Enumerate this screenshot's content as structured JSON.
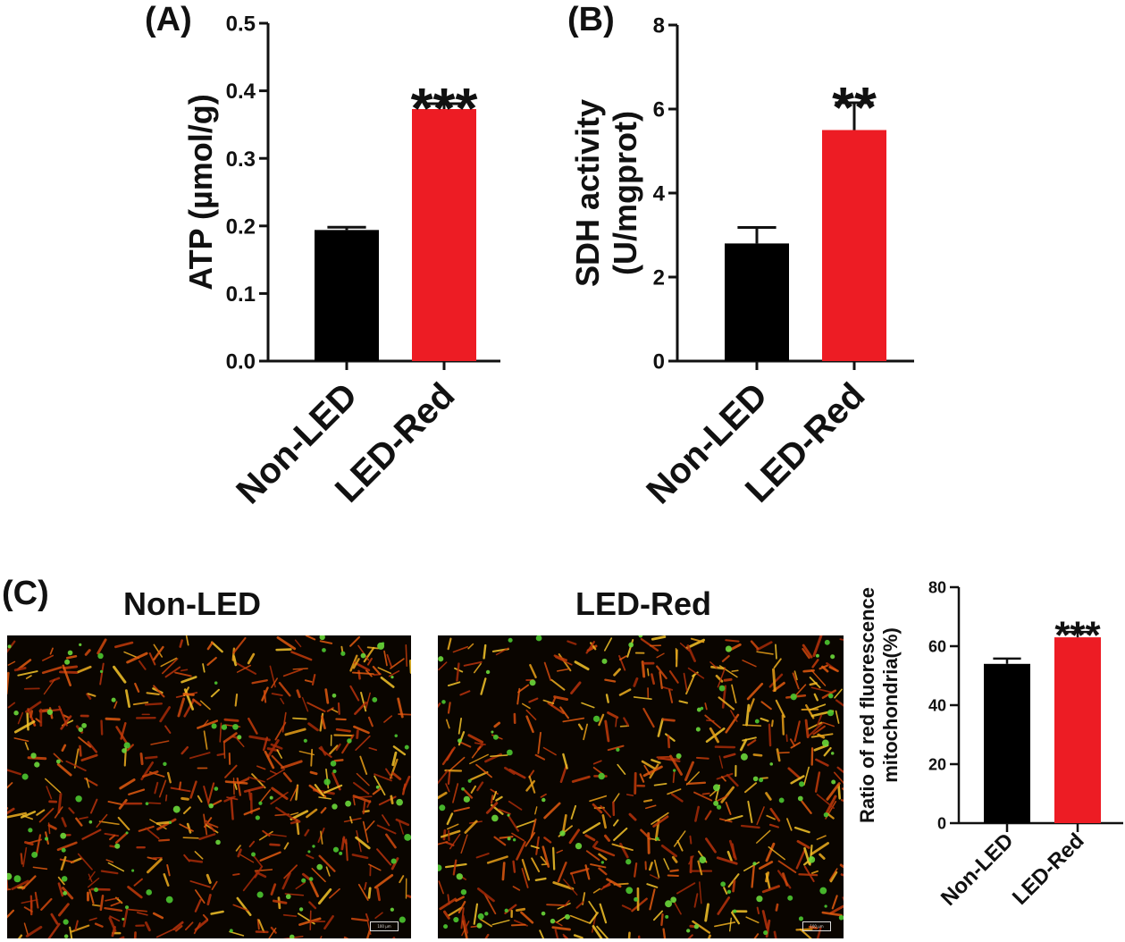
{
  "panel_labels": {
    "a": "(A)",
    "b": "(B)",
    "c": "(C)"
  },
  "colors": {
    "non_led": "#000000",
    "led_red": "#ed1c24",
    "axis": "#111111"
  },
  "chart_data": [
    {
      "id": "A",
      "type": "bar",
      "title": "",
      "categories": [
        "Non-LED",
        "LED-Red"
      ],
      "values": [
        0.194,
        0.373
      ],
      "errors": [
        0.004,
        0.008
      ],
      "ylabel": "ATP (µmol/g)",
      "xlabel": "",
      "ylim": [
        0,
        0.5
      ],
      "yticks": [
        0.0,
        0.1,
        0.2,
        0.3,
        0.4,
        0.5
      ],
      "ytick_labels": [
        "0.0",
        "0.1",
        "0.2",
        "0.3",
        "0.4",
        "0.5"
      ],
      "significance": [
        "",
        "***"
      ],
      "bar_colors": [
        "#000000",
        "#ed1c24"
      ]
    },
    {
      "id": "B",
      "type": "bar",
      "title": "",
      "categories": [
        "Non-LED",
        "LED-Red"
      ],
      "values": [
        2.8,
        5.5
      ],
      "errors": [
        0.38,
        0.65
      ],
      "ylabel": "SDH activity",
      "ylabel2": "(U/mgprot)",
      "xlabel": "",
      "ylim": [
        0,
        8
      ],
      "yticks": [
        0,
        2,
        4,
        6,
        8
      ],
      "ytick_labels": [
        "0",
        "2",
        "4",
        "6",
        "8"
      ],
      "significance": [
        "",
        "**"
      ],
      "bar_colors": [
        "#000000",
        "#ed1c24"
      ]
    },
    {
      "id": "C",
      "type": "bar",
      "title": "",
      "categories": [
        "Non-LED",
        "LED-Red"
      ],
      "values": [
        54,
        63
      ],
      "errors": [
        1.8,
        1.8
      ],
      "ylabel": "Ratio of  red fluorescence",
      "ylabel2": "mitochondria(%)",
      "xlabel": "",
      "ylim": [
        0,
        80
      ],
      "yticks": [
        0,
        20,
        40,
        60,
        80
      ],
      "ytick_labels": [
        "0",
        "20",
        "40",
        "60",
        "80"
      ],
      "significance": [
        "",
        "***"
      ],
      "bar_colors": [
        "#000000",
        "#ed1c24"
      ]
    }
  ],
  "micrographs": [
    {
      "title": "Non-LED",
      "scale_label": "100 µm"
    },
    {
      "title": "LED-Red",
      "scale_label": "100 µm"
    }
  ]
}
